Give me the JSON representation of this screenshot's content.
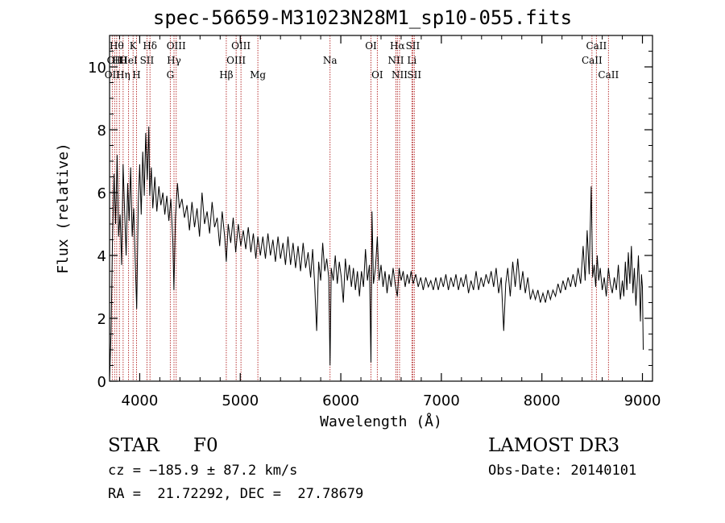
{
  "chart_data": {
    "type": "line",
    "title": "spec-56659-M31023N28M1_sp10-055.fits",
    "xlabel": "Wavelength (Å)",
    "ylabel": "Flux (relative)",
    "xlim": [
      3700,
      9100
    ],
    "ylim": [
      0,
      11
    ],
    "xticks": [
      4000,
      5000,
      6000,
      7000,
      8000,
      9000
    ],
    "yticks": [
      0,
      2,
      4,
      6,
      8,
      10
    ],
    "x_minor_step": 200,
    "y_minor_step": 0.5,
    "line_color": "#000000",
    "marker_color": "#b22222",
    "series": [
      {
        "name": "flux",
        "points": [
          [
            3700,
            0.0
          ],
          [
            3715,
            1.6
          ],
          [
            3730,
            4.6
          ],
          [
            3745,
            6.6
          ],
          [
            3760,
            5.0
          ],
          [
            3775,
            7.2
          ],
          [
            3790,
            4.6
          ],
          [
            3805,
            5.3
          ],
          [
            3820,
            3.7
          ],
          [
            3835,
            6.9
          ],
          [
            3850,
            5.4
          ],
          [
            3865,
            4.0
          ],
          [
            3880,
            6.3
          ],
          [
            3895,
            5.1
          ],
          [
            3910,
            6.8
          ],
          [
            3925,
            4.6
          ],
          [
            3940,
            5.5
          ],
          [
            3955,
            3.9
          ],
          [
            3970,
            2.3
          ],
          [
            3985,
            5.6
          ],
          [
            4000,
            6.9
          ],
          [
            4015,
            5.3
          ],
          [
            4030,
            7.3
          ],
          [
            4045,
            5.9
          ],
          [
            4060,
            7.9
          ],
          [
            4075,
            6.4
          ],
          [
            4090,
            8.1
          ],
          [
            4100,
            5.9
          ],
          [
            4115,
            6.8
          ],
          [
            4130,
            5.5
          ],
          [
            4150,
            6.5
          ],
          [
            4170,
            5.4
          ],
          [
            4190,
            6.2
          ],
          [
            4210,
            5.6
          ],
          [
            4230,
            6.0
          ],
          [
            4250,
            5.3
          ],
          [
            4270,
            5.9
          ],
          [
            4290,
            5.1
          ],
          [
            4310,
            5.8
          ],
          [
            4330,
            4.4
          ],
          [
            4340,
            2.9
          ],
          [
            4355,
            5.2
          ],
          [
            4375,
            6.3
          ],
          [
            4395,
            5.5
          ],
          [
            4420,
            5.8
          ],
          [
            4445,
            5.2
          ],
          [
            4470,
            5.6
          ],
          [
            4495,
            4.8
          ],
          [
            4520,
            5.7
          ],
          [
            4545,
            4.9
          ],
          [
            4570,
            5.5
          ],
          [
            4595,
            4.6
          ],
          [
            4620,
            6.0
          ],
          [
            4645,
            5.0
          ],
          [
            4670,
            5.4
          ],
          [
            4695,
            4.7
          ],
          [
            4720,
            5.7
          ],
          [
            4745,
            4.9
          ],
          [
            4770,
            5.2
          ],
          [
            4795,
            4.3
          ],
          [
            4820,
            5.4
          ],
          [
            4845,
            4.6
          ],
          [
            4861,
            3.8
          ],
          [
            4880,
            5.0
          ],
          [
            4905,
            4.4
          ],
          [
            4930,
            5.2
          ],
          [
            4955,
            4.1
          ],
          [
            4980,
            5.0
          ],
          [
            5005,
            4.3
          ],
          [
            5030,
            4.8
          ],
          [
            5055,
            4.2
          ],
          [
            5080,
            4.9
          ],
          [
            5105,
            4.1
          ],
          [
            5130,
            4.7
          ],
          [
            5155,
            3.9
          ],
          [
            5175,
            4.6
          ],
          [
            5200,
            4.0
          ],
          [
            5225,
            4.6
          ],
          [
            5250,
            3.9
          ],
          [
            5275,
            4.7
          ],
          [
            5300,
            4.0
          ],
          [
            5325,
            4.5
          ],
          [
            5350,
            3.8
          ],
          [
            5375,
            4.6
          ],
          [
            5400,
            3.9
          ],
          [
            5425,
            4.4
          ],
          [
            5450,
            3.7
          ],
          [
            5475,
            4.6
          ],
          [
            5500,
            3.7
          ],
          [
            5525,
            4.4
          ],
          [
            5550,
            3.6
          ],
          [
            5575,
            4.3
          ],
          [
            5600,
            3.5
          ],
          [
            5625,
            4.4
          ],
          [
            5650,
            3.6
          ],
          [
            5675,
            4.1
          ],
          [
            5700,
            3.3
          ],
          [
            5720,
            4.2
          ],
          [
            5740,
            3.1
          ],
          [
            5760,
            1.6
          ],
          [
            5780,
            3.8
          ],
          [
            5800,
            3.2
          ],
          [
            5820,
            4.4
          ],
          [
            5840,
            3.5
          ],
          [
            5860,
            3.9
          ],
          [
            5880,
            3.3
          ],
          [
            5893,
            0.5
          ],
          [
            5905,
            3.6
          ],
          [
            5925,
            3.2
          ],
          [
            5945,
            4.0
          ],
          [
            5965,
            3.1
          ],
          [
            5985,
            3.8
          ],
          [
            6005,
            3.3
          ],
          [
            6025,
            2.5
          ],
          [
            6045,
            3.9
          ],
          [
            6065,
            3.2
          ],
          [
            6085,
            3.7
          ],
          [
            6105,
            3.0
          ],
          [
            6125,
            3.6
          ],
          [
            6145,
            2.9
          ],
          [
            6165,
            3.5
          ],
          [
            6185,
            2.7
          ],
          [
            6205,
            3.5
          ],
          [
            6225,
            3.0
          ],
          [
            6245,
            4.2
          ],
          [
            6265,
            3.2
          ],
          [
            6285,
            3.7
          ],
          [
            6300,
            0.6
          ],
          [
            6310,
            5.4
          ],
          [
            6325,
            3.1
          ],
          [
            6345,
            3.6
          ],
          [
            6363,
            4.6
          ],
          [
            6380,
            3.2
          ],
          [
            6400,
            3.7
          ],
          [
            6420,
            3.0
          ],
          [
            6440,
            3.5
          ],
          [
            6460,
            2.8
          ],
          [
            6480,
            3.4
          ],
          [
            6500,
            3.0
          ],
          [
            6520,
            3.6
          ],
          [
            6540,
            3.1
          ],
          [
            6563,
            2.7
          ],
          [
            6580,
            3.6
          ],
          [
            6600,
            3.2
          ],
          [
            6620,
            3.5
          ],
          [
            6640,
            3.0
          ],
          [
            6660,
            3.4
          ],
          [
            6680,
            3.1
          ],
          [
            6700,
            3.5
          ],
          [
            6720,
            3.1
          ],
          [
            6745,
            3.4
          ],
          [
            6770,
            3.0
          ],
          [
            6795,
            3.3
          ],
          [
            6820,
            2.9
          ],
          [
            6845,
            3.3
          ],
          [
            6870,
            3.0
          ],
          [
            6895,
            3.2
          ],
          [
            6920,
            2.9
          ],
          [
            6945,
            3.3
          ],
          [
            6970,
            2.9
          ],
          [
            6995,
            3.3
          ],
          [
            7020,
            3.0
          ],
          [
            7045,
            3.4
          ],
          [
            7070,
            2.9
          ],
          [
            7095,
            3.3
          ],
          [
            7120,
            3.0
          ],
          [
            7145,
            3.4
          ],
          [
            7170,
            2.9
          ],
          [
            7195,
            3.3
          ],
          [
            7220,
            3.0
          ],
          [
            7245,
            3.4
          ],
          [
            7270,
            2.8
          ],
          [
            7295,
            3.2
          ],
          [
            7320,
            2.9
          ],
          [
            7345,
            3.5
          ],
          [
            7370,
            2.9
          ],
          [
            7395,
            3.3
          ],
          [
            7420,
            3.0
          ],
          [
            7445,
            3.4
          ],
          [
            7470,
            3.1
          ],
          [
            7495,
            3.5
          ],
          [
            7520,
            3.0
          ],
          [
            7545,
            3.6
          ],
          [
            7570,
            2.8
          ],
          [
            7595,
            3.3
          ],
          [
            7620,
            1.6
          ],
          [
            7640,
            3.1
          ],
          [
            7660,
            3.6
          ],
          [
            7685,
            2.7
          ],
          [
            7710,
            3.8
          ],
          [
            7735,
            3.0
          ],
          [
            7760,
            3.9
          ],
          [
            7785,
            2.9
          ],
          [
            7810,
            3.5
          ],
          [
            7835,
            2.8
          ],
          [
            7860,
            3.3
          ],
          [
            7885,
            2.6
          ],
          [
            7910,
            2.9
          ],
          [
            7935,
            2.6
          ],
          [
            7960,
            2.9
          ],
          [
            7985,
            2.5
          ],
          [
            8010,
            2.8
          ],
          [
            8035,
            2.5
          ],
          [
            8060,
            2.9
          ],
          [
            8085,
            2.6
          ],
          [
            8110,
            2.9
          ],
          [
            8135,
            2.7
          ],
          [
            8160,
            3.1
          ],
          [
            8185,
            2.8
          ],
          [
            8210,
            3.2
          ],
          [
            8235,
            2.9
          ],
          [
            8260,
            3.3
          ],
          [
            8285,
            3.0
          ],
          [
            8310,
            3.4
          ],
          [
            8335,
            3.0
          ],
          [
            8360,
            3.6
          ],
          [
            8385,
            3.1
          ],
          [
            8410,
            4.3
          ],
          [
            8430,
            3.2
          ],
          [
            8450,
            4.8
          ],
          [
            8470,
            3.4
          ],
          [
            8490,
            6.2
          ],
          [
            8505,
            3.3
          ],
          [
            8520,
            3.7
          ],
          [
            8535,
            3.0
          ],
          [
            8550,
            4.0
          ],
          [
            8565,
            3.2
          ],
          [
            8580,
            3.6
          ],
          [
            8600,
            2.9
          ],
          [
            8620,
            3.3
          ],
          [
            8640,
            2.7
          ],
          [
            8662,
            3.6
          ],
          [
            8680,
            3.1
          ],
          [
            8700,
            2.8
          ],
          [
            8720,
            3.3
          ],
          [
            8740,
            2.9
          ],
          [
            8760,
            3.7
          ],
          [
            8780,
            2.6
          ],
          [
            8800,
            3.2
          ],
          [
            8815,
            2.7
          ],
          [
            8830,
            3.8
          ],
          [
            8845,
            2.9
          ],
          [
            8860,
            4.1
          ],
          [
            8875,
            3.1
          ],
          [
            8890,
            4.3
          ],
          [
            8905,
            2.8
          ],
          [
            8920,
            3.6
          ],
          [
            8935,
            2.4
          ],
          [
            8950,
            3.3
          ],
          [
            8960,
            4.0
          ],
          [
            8970,
            3.0
          ],
          [
            8980,
            1.9
          ],
          [
            8990,
            3.4
          ],
          [
            9000,
            3.0
          ],
          [
            9008,
            1.0
          ]
        ]
      }
    ],
    "lines": [
      {
        "wavelength": 3727,
        "row": 2,
        "label": "OII"
      },
      {
        "wavelength": 3750,
        "row": 1,
        "label": "OII"
      },
      {
        "wavelength": 3771,
        "row": 0,
        "label": "Hθ"
      },
      {
        "wavelength": 3798,
        "row": 1,
        "label": "Hθ"
      },
      {
        "wavelength": 3835,
        "row": 2,
        "label": "Hη"
      },
      {
        "wavelength": 3889,
        "row": 1,
        "label": "HeI"
      },
      {
        "wavelength": 3934,
        "row": 0,
        "label": "K"
      },
      {
        "wavelength": 3968,
        "row": 2,
        "label": "H"
      },
      {
        "wavelength": 4072,
        "row": 1,
        "label": "SII"
      },
      {
        "wavelength": 4102,
        "row": 0,
        "label": "Hδ"
      },
      {
        "wavelength": 4304,
        "row": 2,
        "label": "G"
      },
      {
        "wavelength": 4341,
        "row": 1,
        "label": "Hγ"
      },
      {
        "wavelength": 4363,
        "row": 0,
        "label": "OIII"
      },
      {
        "wavelength": 4861,
        "row": 2,
        "label": "Hβ"
      },
      {
        "wavelength": 4959,
        "row": 1,
        "label": "OIII"
      },
      {
        "wavelength": 5007,
        "row": 0,
        "label": "OIII"
      },
      {
        "wavelength": 5175,
        "row": 2,
        "label": "Mg"
      },
      {
        "wavelength": 5893,
        "row": 1,
        "label": "Na"
      },
      {
        "wavelength": 6300,
        "row": 0,
        "label": "OI"
      },
      {
        "wavelength": 6363,
        "row": 2,
        "label": "OI"
      },
      {
        "wavelength": 6548,
        "row": 1,
        "label": "NII"
      },
      {
        "wavelength": 6563,
        "row": 0,
        "label": "Hα"
      },
      {
        "wavelength": 6584,
        "row": 2,
        "label": "NII"
      },
      {
        "wavelength": 6707,
        "row": 1,
        "label": "Li"
      },
      {
        "wavelength": 6716,
        "row": 0,
        "label": "SII"
      },
      {
        "wavelength": 6731,
        "row": 2,
        "label": "SII"
      },
      {
        "wavelength": 8498,
        "row": 1,
        "label": "CaII"
      },
      {
        "wavelength": 8542,
        "row": 0,
        "label": "CaII"
      },
      {
        "wavelength": 8662,
        "row": 2,
        "label": "CaII"
      }
    ]
  },
  "info": {
    "class": "STAR",
    "subclass": "F0",
    "survey": "LAMOST DR3",
    "cz": "cz = −185.9 ± 87.2 km/s",
    "obs_date": "Obs-Date: 20140101",
    "coords": "RA =  21.72292, DEC =  27.78679"
  }
}
